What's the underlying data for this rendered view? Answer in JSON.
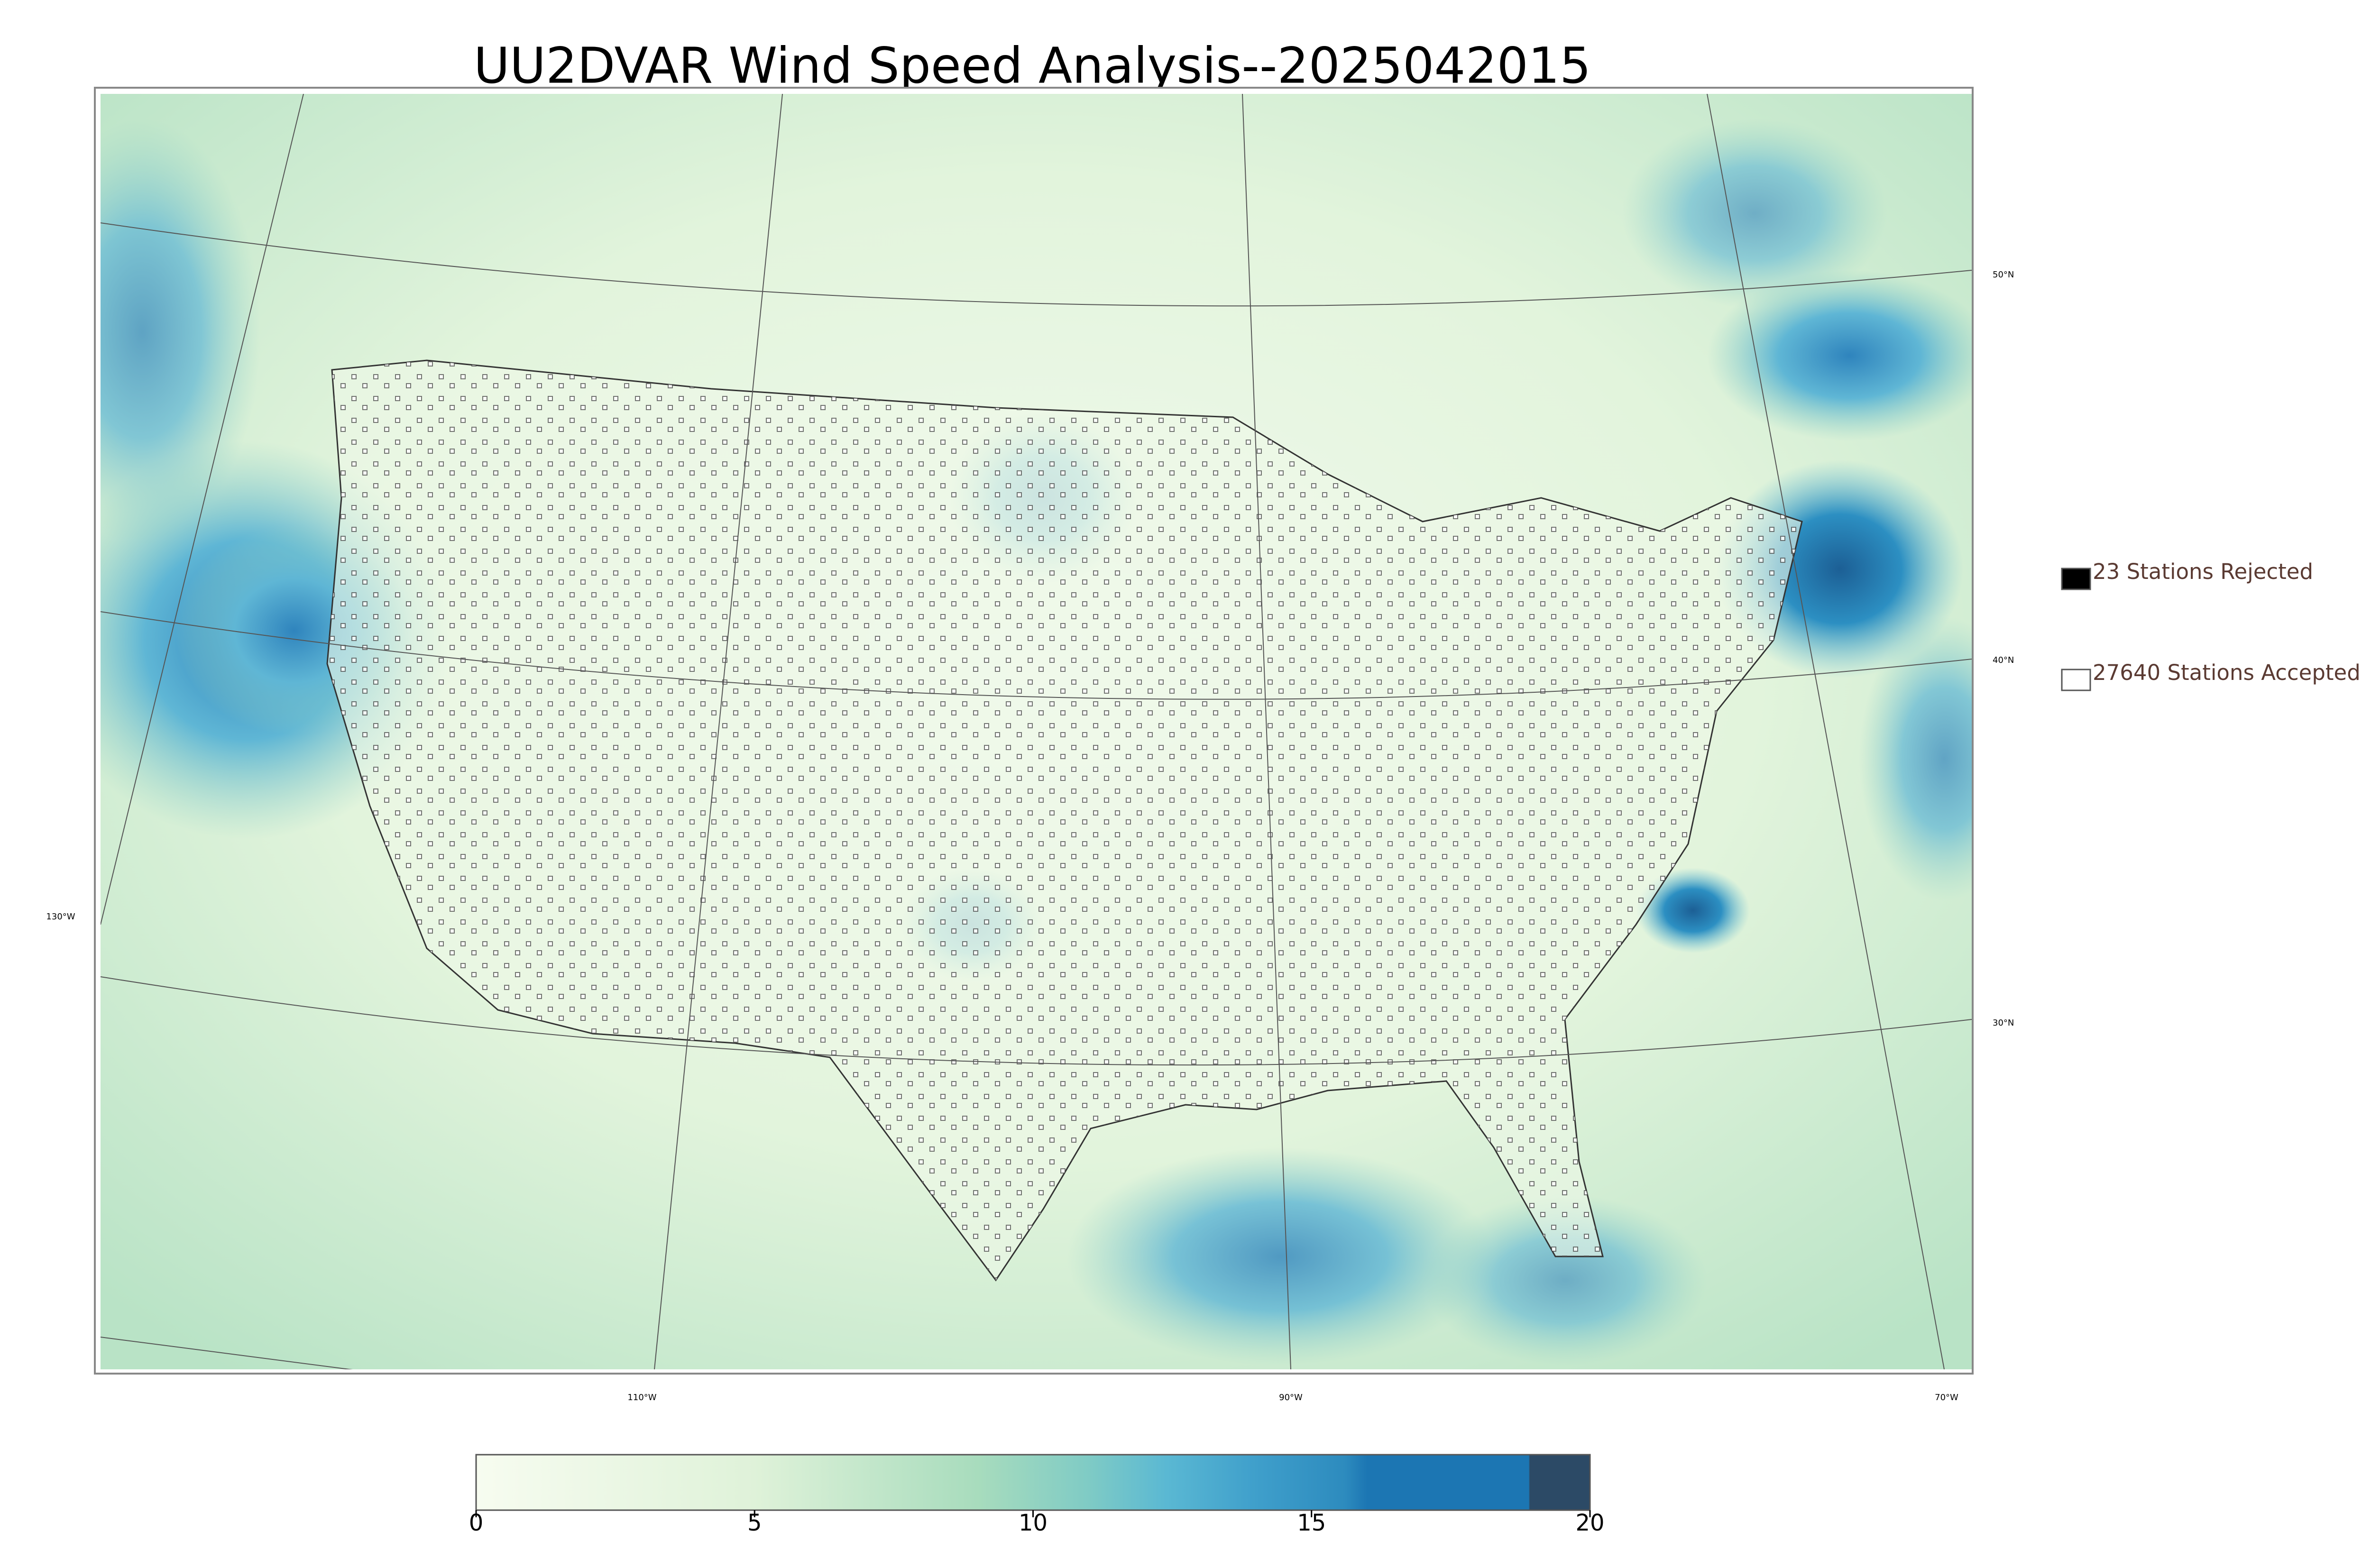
{
  "title": "UU2DVAR Wind Speed Analysis--2025042015",
  "legend": [
    {
      "label": "23 Stations Rejected",
      "color": "#000000"
    },
    {
      "label": "27640 Stations Accepted",
      "color": "#ffffff"
    }
  ],
  "graticule": {
    "lat_labels": [
      "50°N",
      "40°N",
      "30°N"
    ],
    "lon_labels": [
      "130°W",
      "110°W",
      "90°W",
      "70°W"
    ]
  },
  "colorbar": {
    "lim": [
      0,
      20
    ],
    "ticks": [
      0,
      5,
      10,
      15,
      20
    ]
  }
}
